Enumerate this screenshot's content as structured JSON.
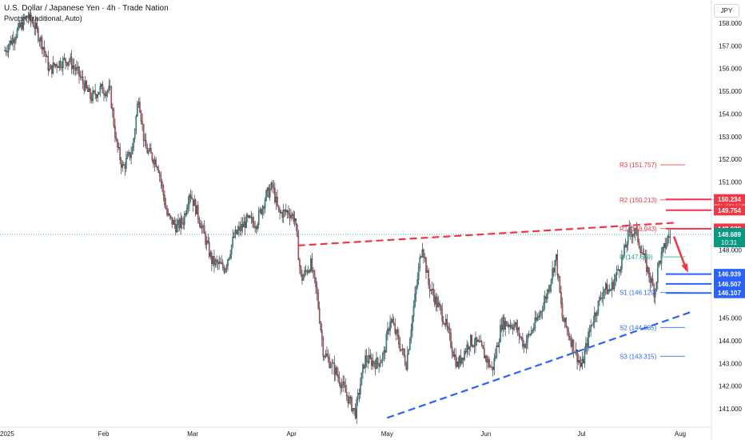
{
  "header": {
    "title": "U.S. Dollar / Japanese Yen · 4h · Trade Nation",
    "indicator": "Pivots (Traditional, Auto)",
    "currency_button": "JPY"
  },
  "colors": {
    "up": "#26a69a",
    "down": "#ef5350",
    "candle": "#131722",
    "resistance": "#f23645",
    "support": "#2962ff",
    "last_price": "#089981"
  },
  "chart_data": {
    "type": "candlestick",
    "ylim": [
      140.5,
      158.5
    ],
    "y_ticks": [
      "158.000",
      "157.000",
      "156.000",
      "155.000",
      "154.000",
      "153.000",
      "152.000",
      "151.000",
      "150.000",
      "149.000",
      "148.000",
      "147.000",
      "146.000",
      "145.000",
      "144.000",
      "143.000",
      "142.000",
      "141.000"
    ],
    "x_ticks": [
      "2025",
      "Feb",
      "Mar",
      "Apr",
      "May",
      "Jun",
      "Jul",
      "Aug"
    ],
    "price_path": [
      [
        "2025-01-01",
        156.8
      ],
      [
        "2025-01-08",
        158.3
      ],
      [
        "2025-01-10",
        158.0
      ],
      [
        "2025-01-13",
        157.0
      ],
      [
        "2025-01-15",
        155.9
      ],
      [
        "2025-01-17",
        156.2
      ],
      [
        "2025-01-21",
        156.4
      ],
      [
        "2025-01-24",
        155.8
      ],
      [
        "2025-01-28",
        154.7
      ],
      [
        "2025-01-31",
        155.1
      ],
      [
        "2025-02-03",
        155.0
      ],
      [
        "2025-02-05",
        152.7
      ],
      [
        "2025-02-07",
        151.6
      ],
      [
        "2025-02-10",
        152.4
      ],
      [
        "2025-02-12",
        154.8
      ],
      [
        "2025-02-14",
        152.5
      ],
      [
        "2025-02-18",
        151.8
      ],
      [
        "2025-02-21",
        149.5
      ],
      [
        "2025-02-24",
        149.0
      ],
      [
        "2025-02-26",
        149.3
      ],
      [
        "2025-02-28",
        150.6
      ],
      [
        "2025-03-03",
        149.4
      ],
      [
        "2025-03-07",
        147.5
      ],
      [
        "2025-03-11",
        147.2
      ],
      [
        "2025-03-14",
        148.6
      ],
      [
        "2025-03-18",
        149.3
      ],
      [
        "2025-03-21",
        149.2
      ],
      [
        "2025-03-24",
        150.4
      ],
      [
        "2025-03-26",
        150.8
      ],
      [
        "2025-03-28",
        149.6
      ],
      [
        "2025-03-31",
        149.7
      ],
      [
        "2025-04-02",
        149.4
      ],
      [
        "2025-04-04",
        146.7
      ],
      [
        "2025-04-07",
        147.4
      ],
      [
        "2025-04-09",
        146.0
      ],
      [
        "2025-04-11",
        143.5
      ],
      [
        "2025-04-15",
        142.6
      ],
      [
        "2025-04-18",
        141.7
      ],
      [
        "2025-04-21",
        140.8
      ],
      [
        "2025-04-24",
        143.2
      ],
      [
        "2025-04-28",
        143.0
      ],
      [
        "2025-04-30",
        143.4
      ],
      [
        "2025-05-02",
        145.0
      ],
      [
        "2025-05-07",
        143.0
      ],
      [
        "2025-05-12",
        148.3
      ],
      [
        "2025-05-14",
        146.5
      ],
      [
        "2025-05-19",
        144.9
      ],
      [
        "2025-05-23",
        142.9
      ],
      [
        "2025-05-27",
        144.0
      ],
      [
        "2025-05-30",
        143.8
      ],
      [
        "2025-06-03",
        142.7
      ],
      [
        "2025-06-06",
        144.8
      ],
      [
        "2025-06-10",
        144.7
      ],
      [
        "2025-06-13",
        143.8
      ],
      [
        "2025-06-17",
        144.9
      ],
      [
        "2025-06-20",
        146.0
      ],
      [
        "2025-06-23",
        147.7
      ],
      [
        "2025-06-25",
        145.0
      ],
      [
        "2025-06-27",
        144.3
      ],
      [
        "2025-07-01",
        142.8
      ],
      [
        "2025-07-04",
        144.7
      ],
      [
        "2025-07-08",
        146.3
      ],
      [
        "2025-07-10",
        146.2
      ],
      [
        "2025-07-14",
        147.7
      ],
      [
        "2025-07-16",
        148.8
      ],
      [
        "2025-07-18",
        148.8
      ],
      [
        "2025-07-22",
        147.0
      ],
      [
        "2025-07-24",
        146.1
      ],
      [
        "2025-07-25",
        147.3
      ],
      [
        "2025-07-28",
        148.5
      ],
      [
        "2025-07-29",
        148.69
      ]
    ],
    "pivots": [
      {
        "label": "R3",
        "value": 151.757
      },
      {
        "label": "R2",
        "value": 150.213
      },
      {
        "label": "R1",
        "value": 148.943
      },
      {
        "label": "P",
        "value": 147.699
      },
      {
        "label": "S1",
        "value": 146.129
      },
      {
        "label": "S2",
        "value": 144.585
      },
      {
        "label": "S3",
        "value": 143.315
      }
    ],
    "price_badges": [
      {
        "value": "150.234",
        "kind": "resistance"
      },
      {
        "value": "149.754",
        "kind": "resistance"
      },
      {
        "value": "148.938",
        "kind": "resistance"
      },
      {
        "value": "146.939",
        "kind": "support"
      },
      {
        "value": "146.507",
        "kind": "support"
      },
      {
        "value": "146.107",
        "kind": "support"
      }
    ],
    "last_price": {
      "value": "148.689",
      "timer": "10:31"
    },
    "resistance_trendline": [
      [
        "2025-04-03",
        148.2
      ],
      [
        "2025-07-30",
        149.2
      ]
    ],
    "support_trendline": [
      [
        "2025-05-01",
        140.6
      ],
      [
        "2025-08-05",
        145.3
      ]
    ],
    "projection_arrow": [
      [
        "2025-07-30",
        148.6
      ],
      [
        "2025-08-03",
        147.1
      ]
    ]
  }
}
